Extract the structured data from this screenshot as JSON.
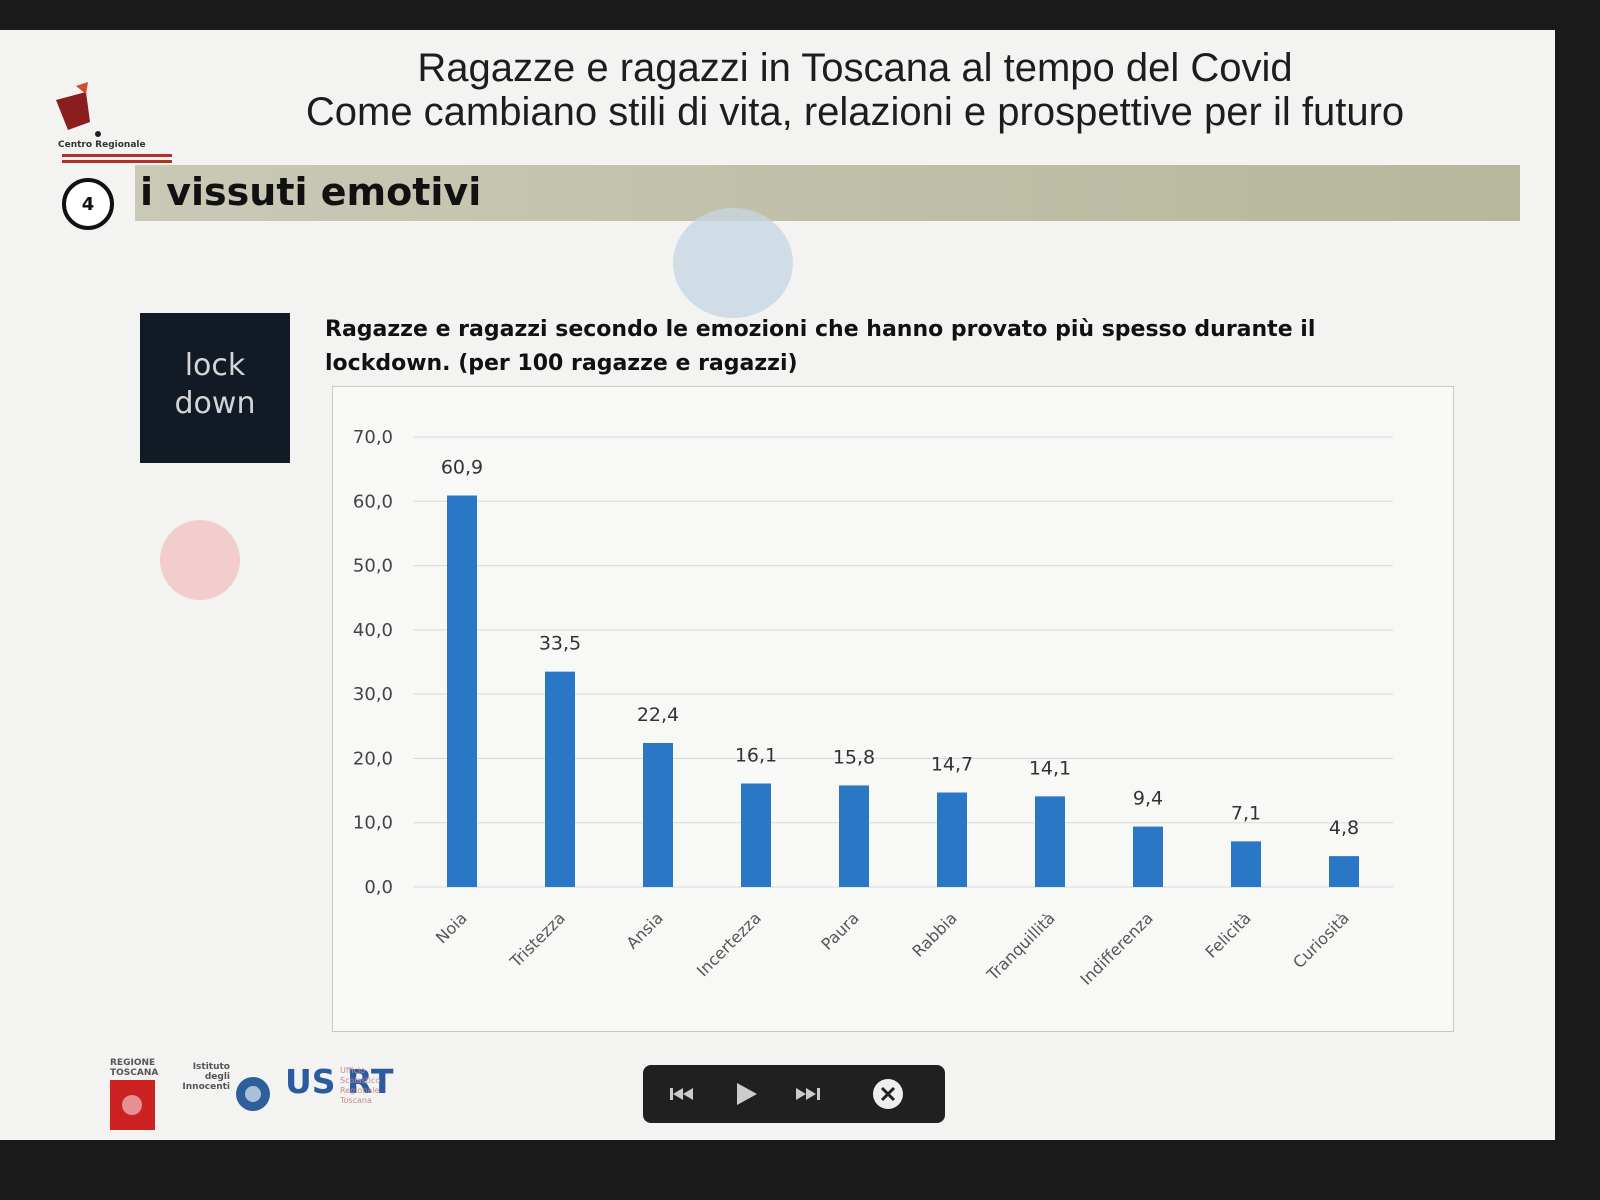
{
  "header": {
    "title_line1": "Ragazze e ragazzi in Toscana al tempo del Covid",
    "title_line2": "Come cambiano stili di vita, relazioni e prospettive per il futuro",
    "logo_text": "Centro Regionale"
  },
  "section": {
    "number": "4",
    "title": "i vissuti emotivi"
  },
  "badge": {
    "line1": "lock",
    "line2": "down"
  },
  "chart_data": {
    "type": "bar",
    "title": "Ragazze e ragazzi secondo le emozioni che hanno provato più spesso durante il lockdown. (per 100 ragazze e ragazzi)",
    "categories": [
      "Noia",
      "Tristezza",
      "Ansia",
      "Incertezza",
      "Paura",
      "Rabbia",
      "Tranquillità",
      "Indifferenza",
      "Felicità",
      "Curiosità"
    ],
    "values": [
      60.9,
      33.5,
      22.4,
      16.1,
      15.8,
      14.7,
      14.1,
      9.4,
      7.1,
      4.8
    ],
    "value_labels": [
      "60,9",
      "33,5",
      "22,4",
      "16,1",
      "15,8",
      "14,7",
      "14,1",
      "9,4",
      "7,1",
      "4,8"
    ],
    "y_ticks": [
      "0,0",
      "10,0",
      "20,0",
      "30,0",
      "40,0",
      "50,0",
      "60,0",
      "70,0"
    ],
    "ylim": [
      0,
      70
    ],
    "grid": true,
    "bar_color": "#2a77c6"
  },
  "footer": {
    "logo_usrt": "US RT",
    "logo_innocenti": "Istituto degli Innocenti",
    "logo_regione": "REGIONE TOSCANA",
    "usrt_caption": "Ufficio Scolastico Regionale Toscana"
  },
  "media_controls": {
    "icons": [
      "previous-icon",
      "play-icon",
      "next-icon",
      "close-icon"
    ]
  }
}
